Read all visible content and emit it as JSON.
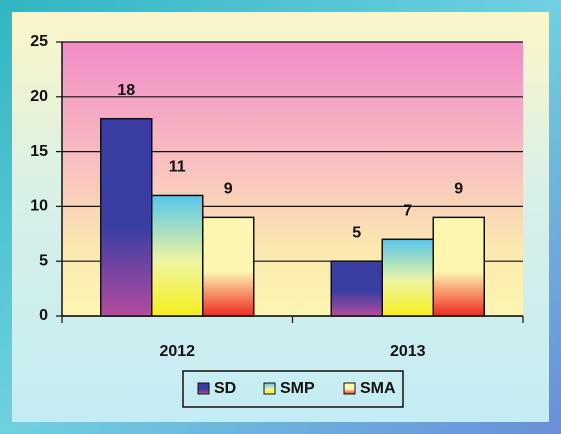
{
  "chart_data": {
    "type": "bar",
    "categories": [
      "2012",
      "2013"
    ],
    "series": [
      {
        "name": "SD",
        "color": "#3a3ea2",
        "values": [
          18,
          5
        ]
      },
      {
        "name": "SMP",
        "color": "#55c6ea",
        "values": [
          11,
          7
        ]
      },
      {
        "name": "SMA",
        "color": "#fdf6b0",
        "values": [
          9,
          9
        ]
      }
    ],
    "ylim": [
      0,
      25
    ],
    "yticks": [
      0,
      5,
      10,
      15,
      20,
      25
    ],
    "grid": true,
    "legend": "bottom"
  }
}
